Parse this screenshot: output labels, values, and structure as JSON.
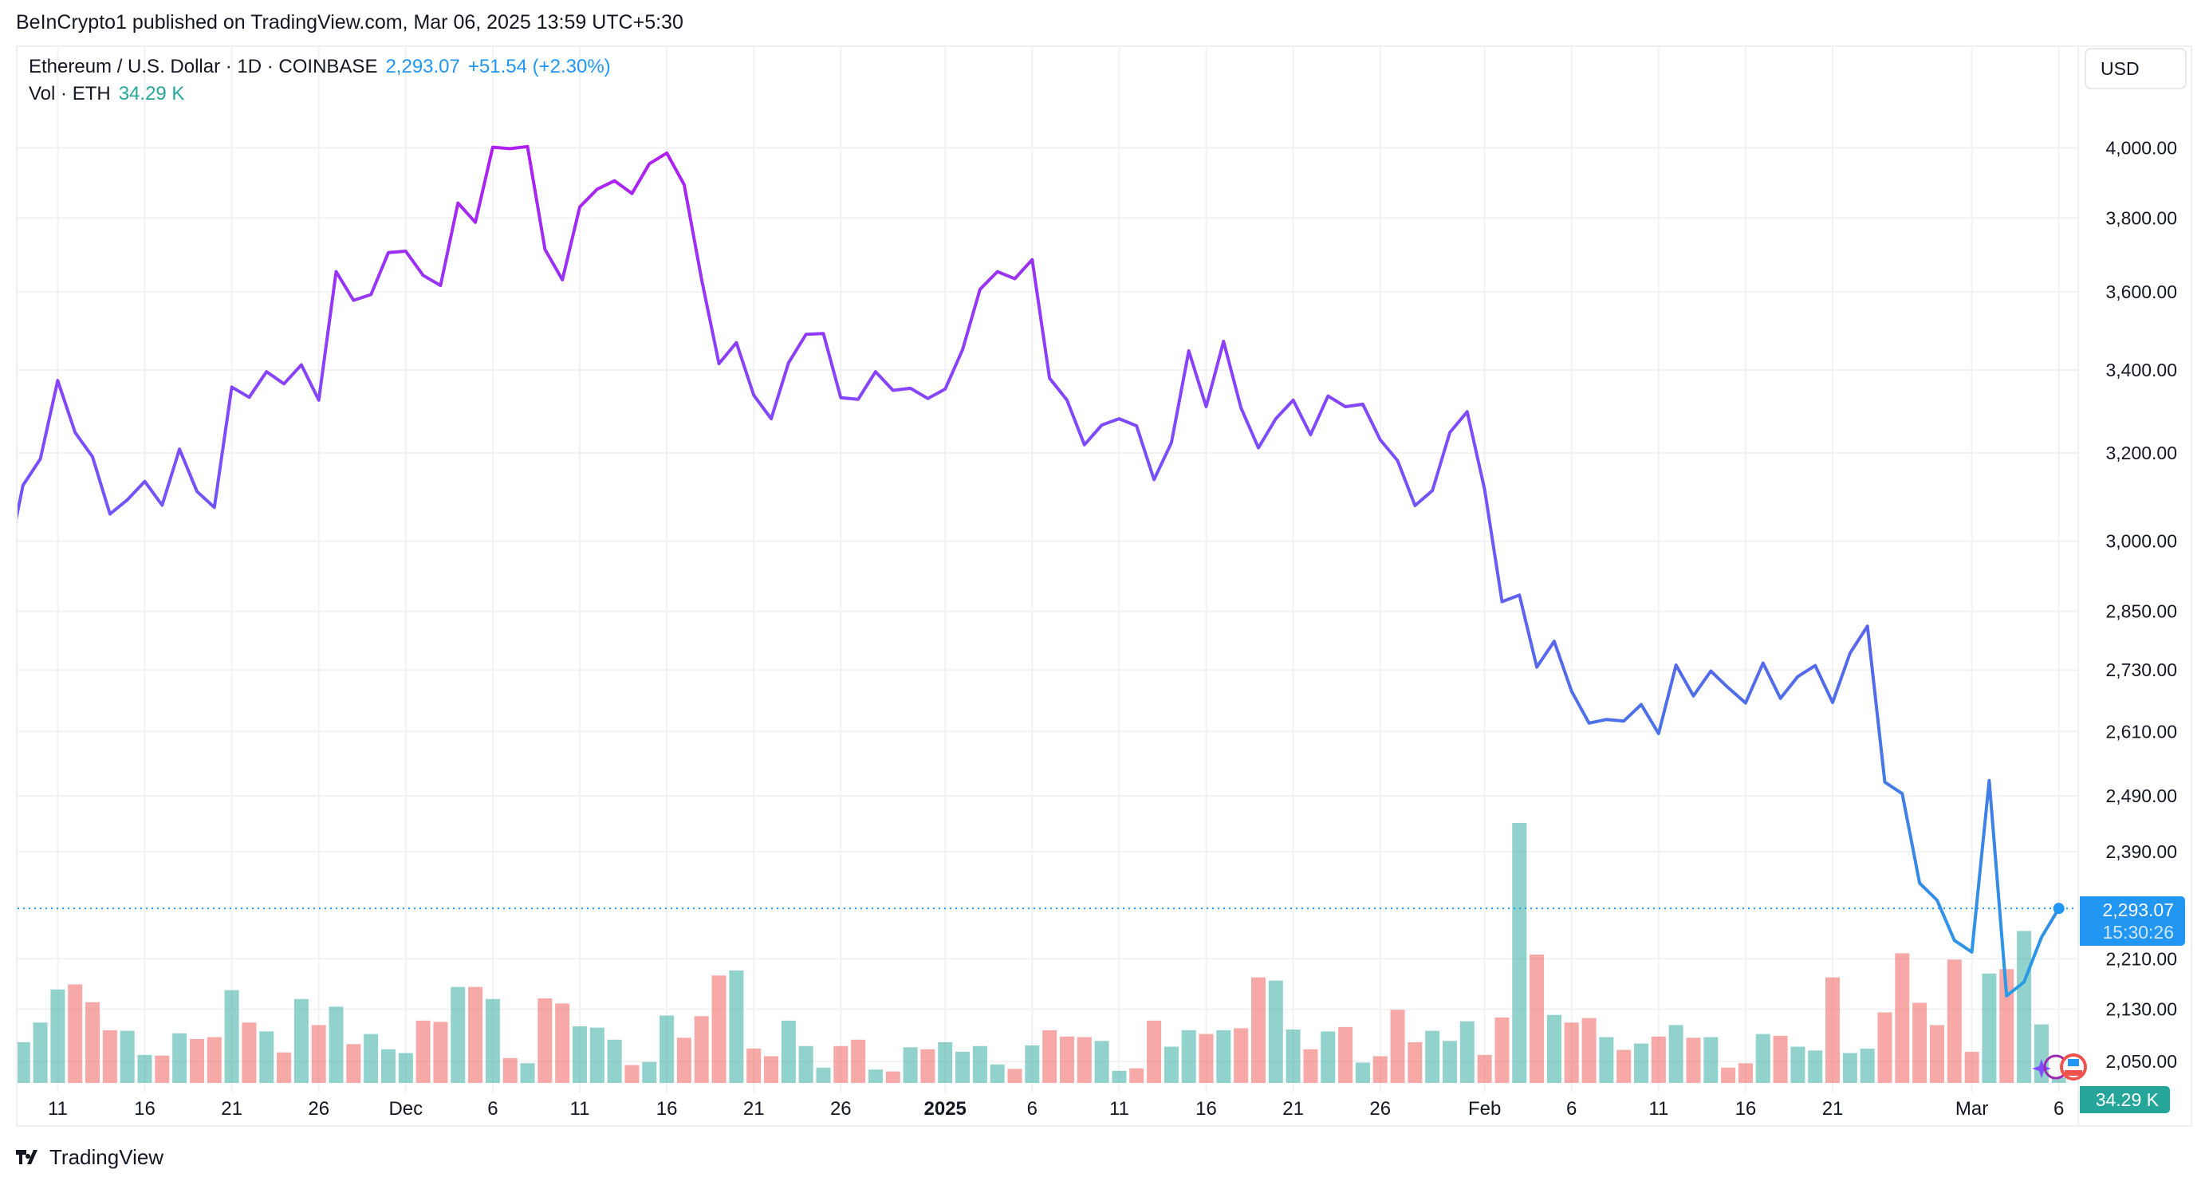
{
  "header": {
    "published": "BeInCrypto1 published on TradingView.com, Mar 06, 2025 13:59 UTC+5:30"
  },
  "legend": {
    "symbol": "Ethereum / U.S. Dollar · 1D · COINBASE",
    "price": "2,293.07",
    "change": "+51.54 (+2.30%)",
    "vol_label": "Vol · ETH",
    "vol_value": "34.29 K"
  },
  "currency_button": "USD",
  "last_price_label": {
    "price": "2,293.07",
    "countdown": "15:30:26"
  },
  "volume_label": "34.29 K",
  "footer": {
    "logo": "TradingView"
  },
  "colors": {
    "up": "#26a69a",
    "down": "#ef5350",
    "accent": "#2196f3",
    "line_top": "#b01ef0",
    "line_mid": "#7c4dff",
    "line_low": "#4f6de8",
    "line_bottom": "#1fa6e6"
  },
  "chart_data": {
    "type": "line",
    "title": "Ethereum / U.S. Dollar · 1D · COINBASE",
    "scale": "log",
    "start_date": "2024-11-08",
    "interval": "1D",
    "ylim": [
      2050,
      4000
    ],
    "y_ticks": [
      "4,000.00",
      "3,800.00",
      "3,600.00",
      "3,400.00",
      "3,200.00",
      "3,000.00",
      "2,850.00",
      "2,730.00",
      "2,610.00",
      "2,490.00",
      "2,390.00",
      "2,210.00",
      "2,130.00",
      "2,050.00"
    ],
    "y_tick_values": [
      4000,
      3800,
      3600,
      3400,
      3200,
      3000,
      2850,
      2730,
      2610,
      2490,
      2390,
      2210,
      2130,
      2050
    ],
    "x_ticks": [
      {
        "label": "11",
        "day": 3
      },
      {
        "label": "16",
        "day": 8
      },
      {
        "label": "21",
        "day": 13
      },
      {
        "label": "26",
        "day": 18
      },
      {
        "label": "Dec",
        "day": 23
      },
      {
        "label": "6",
        "day": 28
      },
      {
        "label": "11",
        "day": 33
      },
      {
        "label": "16",
        "day": 38
      },
      {
        "label": "21",
        "day": 43
      },
      {
        "label": "26",
        "day": 48
      },
      {
        "label": "2025",
        "day": 54,
        "bold": true
      },
      {
        "label": "6",
        "day": 59
      },
      {
        "label": "11",
        "day": 64
      },
      {
        "label": "16",
        "day": 69
      },
      {
        "label": "21",
        "day": 74
      },
      {
        "label": "26",
        "day": 79
      },
      {
        "label": "Feb",
        "day": 85
      },
      {
        "label": "6",
        "day": 90
      },
      {
        "label": "11",
        "day": 95
      },
      {
        "label": "16",
        "day": 100
      },
      {
        "label": "21",
        "day": 105
      },
      {
        "label": "Mar",
        "day": 113
      },
      {
        "label": "6",
        "day": 118
      }
    ],
    "grid": true,
    "series": [
      {
        "name": "Close",
        "values": [
          2935,
          3125,
          3186,
          3374,
          3248,
          3191,
          3060,
          3092,
          3134,
          3080,
          3209,
          3111,
          3075,
          3358,
          3333,
          3396,
          3366,
          3413,
          3326,
          3654,
          3578,
          3593,
          3705,
          3709,
          3644,
          3617,
          3842,
          3788,
          4002,
          3998,
          4004,
          3714,
          3632,
          3831,
          3881,
          3905,
          3869,
          3954,
          3985,
          3894,
          3634,
          3416,
          3469,
          3338,
          3281,
          3418,
          3490,
          3492,
          3332,
          3328,
          3396,
          3350,
          3355,
          3330,
          3353,
          3451,
          3607,
          3654,
          3635,
          3686,
          3380,
          3326,
          3219,
          3266,
          3281,
          3264,
          3138,
          3224,
          3448,
          3310,
          3472,
          3307,
          3212,
          3281,
          3326,
          3243,
          3336,
          3310,
          3316,
          3231,
          3182,
          3079,
          3113,
          3248,
          3298,
          3116,
          2870,
          2884,
          2736,
          2788,
          2688,
          2626,
          2633,
          2630,
          2662,
          2606,
          2740,
          2679,
          2728,
          2695,
          2665,
          2744,
          2674,
          2717,
          2739,
          2666,
          2764,
          2819,
          2515,
          2494,
          2336,
          2307,
          2240,
          2221,
          2518,
          2151,
          2173,
          2245,
          2293.07
        ]
      },
      {
        "name": "Vol · ETH (K)",
        "values": [
          null,
          256,
          380,
          588,
          620,
          508,
          332,
          328,
          176,
          172,
          312,
          276,
          288,
          584,
          380,
          324,
          192,
          528,
          364,
          480,
          244,
          308,
          212,
          188,
          392,
          384,
          604,
          604,
          528,
          156,
          124,
          532,
          500,
          356,
          348,
          272,
          112,
          132,
          424,
          284,
          420,
          676,
          708,
          216,
          168,
          392,
          232,
          96,
          232,
          272,
          84,
          72,
          224,
          212,
          256,
          196,
          232,
          116,
          88,
          236,
          332,
          292,
          288,
          264,
          76,
          92,
          392,
          228,
          332,
          308,
          332,
          344,
          664,
          644,
          336,
          212,
          324,
          352,
          128,
          168,
          460,
          256,
          328,
          264,
          388,
          176,
          412,
          1636,
          808,
          428,
          380,
          408,
          288,
          208,
          248,
          292,
          364,
          284,
          288,
          96,
          124,
          308,
          296,
          228,
          204,
          664,
          188,
          216,
          444,
          816,
          504,
          364,
          776,
          196,
          688,
          716,
          956,
          368,
          34.29
        ]
      }
    ],
    "last_price": 2293.07
  }
}
